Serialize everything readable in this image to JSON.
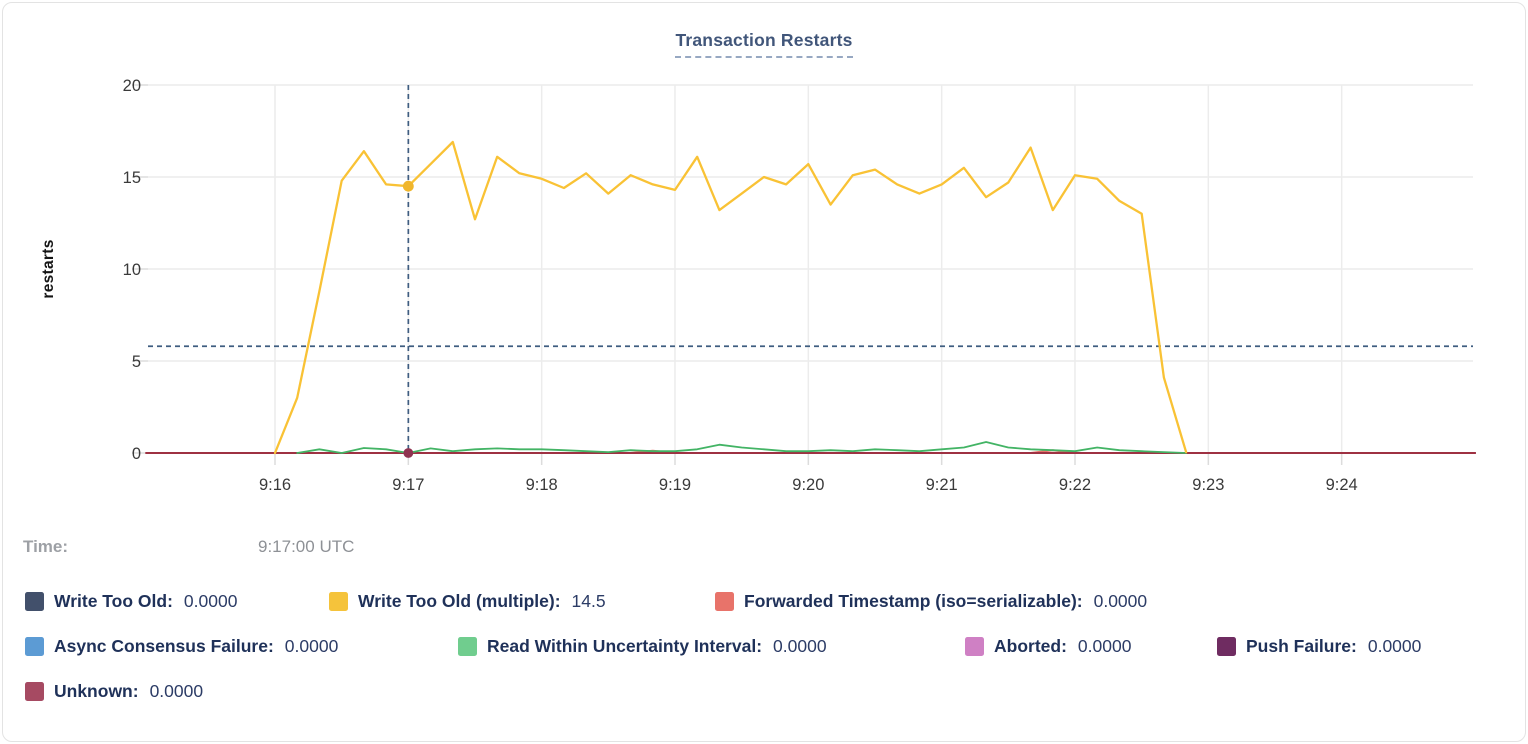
{
  "chart_data": {
    "type": "line",
    "title": "Transaction Restarts",
    "ylabel": "restarts",
    "ylim": [
      0,
      20
    ],
    "yticks": [
      0,
      5,
      10,
      15,
      20
    ],
    "xtick_labels": [
      "9:16",
      "9:17",
      "9:18",
      "9:19",
      "9:20",
      "9:21",
      "9:22",
      "9:23",
      "9:24"
    ],
    "x_domain": [
      "9:15:03",
      "9:25:00"
    ],
    "grid": true,
    "legend_position": "bottom",
    "sample_step_seconds": 10,
    "series": [
      {
        "name": "Write Too Old",
        "slug": "write-too-old",
        "line_color": "#42506b",
        "points": [
          [
            "9:15:03",
            0
          ],
          [
            "9:25:00",
            0
          ]
        ]
      },
      {
        "name": "Write Too Old (multiple)",
        "slug": "write-too-old-multiple",
        "line_color": "#f9c235",
        "samples": {
          "start": "9:16:00",
          "values": [
            0,
            3,
            8.8,
            14.8,
            16.4,
            14.6,
            14.5,
            15.7,
            16.9,
            12.7,
            16.1,
            15.2,
            14.9,
            14.4,
            15.2,
            14.1,
            15.1,
            14.6,
            14.3,
            16.1,
            13.2,
            14.1,
            15,
            14.6,
            15.7,
            13.5,
            15.1,
            15.4,
            14.6,
            14.1,
            14.6,
            15.5,
            13.9,
            14.7,
            16.6,
            13.2,
            15.1,
            14.9,
            13.7,
            13,
            4.1,
            0.05
          ]
        }
      },
      {
        "name": "Forwarded Timestamp (iso=serializable)",
        "slug": "forwarded-timestamp",
        "line_color": "#e8736a",
        "points": [
          [
            "9:15:03",
            0
          ],
          [
            "9:18:40",
            0
          ],
          [
            "9:18:50",
            0.12
          ],
          [
            "9:19:00",
            0
          ],
          [
            "9:21:40",
            0
          ],
          [
            "9:21:50",
            0.15
          ],
          [
            "9:22:00",
            0
          ],
          [
            "9:25:00",
            0
          ]
        ]
      },
      {
        "name": "Async Consensus Failure",
        "slug": "async-consensus-failure",
        "line_color": "#5c9bd4",
        "points": [
          [
            "9:15:03",
            0
          ],
          [
            "9:25:00",
            0
          ]
        ]
      },
      {
        "name": "Read Within Uncertainty Interval",
        "slug": "read-within-uncertainty-interval",
        "line_color": "#43b465",
        "samples": {
          "start": "9:16:10",
          "values": [
            0,
            0.2,
            0,
            0.27,
            0.2,
            0,
            0.25,
            0.1,
            0.2,
            0.25,
            0.2,
            0.2,
            0.15,
            0.1,
            0.05,
            0.15,
            0.1,
            0.1,
            0.2,
            0.45,
            0.3,
            0.2,
            0.1,
            0.1,
            0.15,
            0.1,
            0.2,
            0.15,
            0.1,
            0.2,
            0.3,
            0.6,
            0.3,
            0.2,
            0.15,
            0.1,
            0.3,
            0.15,
            0.1,
            0.05,
            0
          ]
        }
      },
      {
        "name": "Aborted",
        "slug": "aborted",
        "line_color": "#cf80c4",
        "points": [
          [
            "9:15:03",
            0
          ],
          [
            "9:25:00",
            0
          ]
        ]
      },
      {
        "name": "Push Failure",
        "slug": "push-failure",
        "line_color": "#6f2c61",
        "points": [
          [
            "9:15:03",
            0
          ],
          [
            "9:25:00",
            0
          ]
        ]
      },
      {
        "name": "Unknown",
        "slug": "unknown",
        "line_color": "#9e3142",
        "points": [
          [
            "9:15:02",
            0
          ],
          [
            "9:25:00",
            0
          ]
        ]
      }
    ],
    "crosshair": {
      "time": "9:17:00",
      "y_value": 5.8,
      "color": "#3f5d80"
    },
    "hover_markers": [
      {
        "series": "Write Too Old (multiple)",
        "time": "9:17:00",
        "value": 14.5,
        "color": "#f0b62c"
      },
      {
        "series": "Unknown",
        "time": "9:17:00",
        "value": 0,
        "color": "#8f3350"
      }
    ]
  },
  "time_readout": {
    "label": "Time:",
    "value": "9:17:00 UTC"
  },
  "legend": {
    "rows": [
      [
        {
          "slug": "write-too-old",
          "label": "Write Too Old:",
          "value": "0.0000",
          "swatch_color": "#42506b"
        },
        {
          "slug": "write-too-old-multiple",
          "label": "Write Too Old (multiple):",
          "value": "14.5",
          "swatch_color": "#f5c33b"
        },
        {
          "slug": "forwarded-timestamp",
          "label": "Forwarded Timestamp (iso=serializable):",
          "value": "0.0000",
          "swatch_color": "#e8736a"
        }
      ],
      [
        {
          "slug": "async-consensus-failure",
          "label": "Async Consensus Failure:",
          "value": "0.0000",
          "swatch_color": "#5c9bd4"
        },
        {
          "slug": "read-within-uncertainty-interval",
          "label": "Read Within Uncertainty Interval:",
          "value": "0.0000",
          "swatch_color": "#70cd8e"
        },
        {
          "slug": "aborted",
          "label": "Aborted:",
          "value": "0.0000",
          "swatch_color": "#cf80c4"
        },
        {
          "slug": "push-failure",
          "label": "Push Failure:",
          "value": "0.0000",
          "swatch_color": "#6f2c61"
        }
      ],
      [
        {
          "slug": "unknown",
          "label": "Unknown:",
          "value": "0.0000",
          "swatch_color": "#a64a62"
        }
      ]
    ]
  }
}
